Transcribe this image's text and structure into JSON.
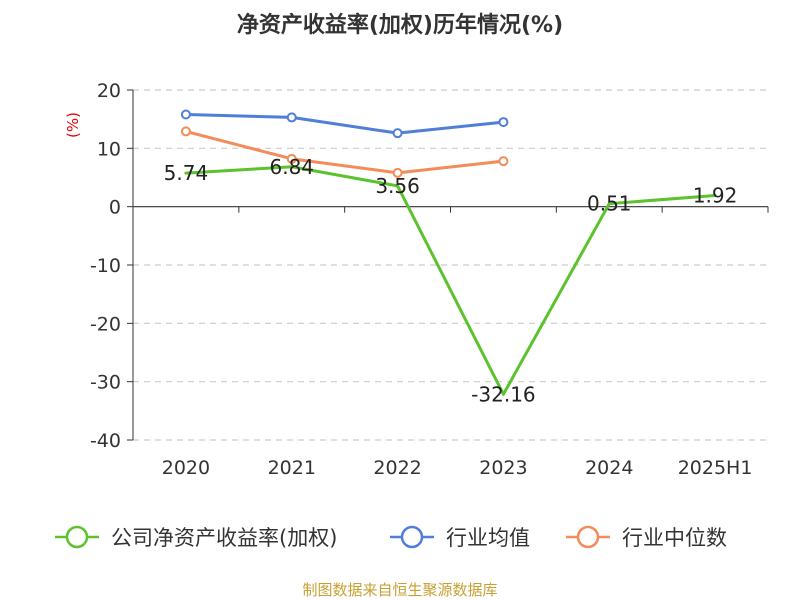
{
  "chart_data": {
    "type": "line",
    "title": "净资产收益率(加权)历年情况(%)",
    "ylabel": "(%)",
    "xlabel": "",
    "ylim": [
      -40,
      20
    ],
    "y_ticks": [
      20,
      10,
      0,
      -10,
      -20,
      -30,
      -40
    ],
    "categories": [
      "2020",
      "2021",
      "2022",
      "2023",
      "2024",
      "2025H1"
    ],
    "grid": true,
    "legend_position": "bottom",
    "series": [
      {
        "name": "公司净资产收益率(加权)",
        "color": "#5cc22e",
        "marker": "none",
        "values": [
          5.74,
          6.84,
          3.56,
          -32.16,
          0.51,
          1.92
        ],
        "labels": [
          "5.74",
          "6.84",
          "3.56",
          "-32.16",
          "0.51",
          "1.92"
        ]
      },
      {
        "name": "行业均值",
        "color": "#4f7fd8",
        "marker": "circle",
        "values": [
          15.8,
          15.3,
          12.6,
          14.5,
          null,
          null
        ]
      },
      {
        "name": "行业中位数",
        "color": "#f28c58",
        "marker": "circle",
        "values": [
          12.9,
          8.2,
          5.8,
          7.8,
          null,
          null
        ]
      }
    ]
  },
  "source": "制图数据来自恒生聚源数据库",
  "colors": {
    "title": "#333333",
    "axis": "#333333",
    "grid": "#cccccc",
    "ylabel": "#e8000b",
    "source": "#c8a032"
  }
}
